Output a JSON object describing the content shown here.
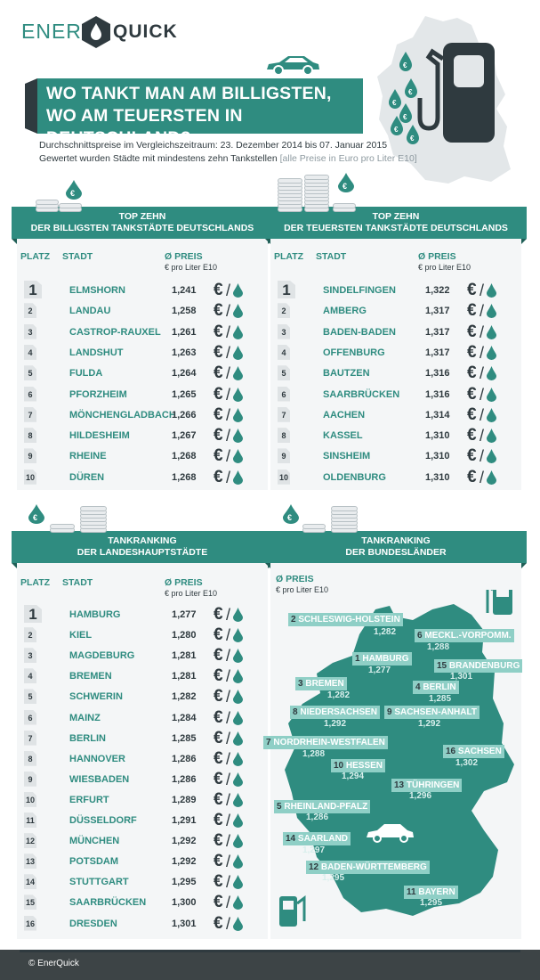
{
  "brand": {
    "part1": "ENER",
    "part2": "QUICK"
  },
  "title": {
    "line1": "WO TANKT MAN AM BILLIGSTEN,",
    "line2": "WO AM TEUERSTEN IN DEUTSCHLAND?"
  },
  "subtitle": {
    "line1": "Durchschnittspreise im Vergleichszeitraum: 23. Dezember 2014 bis 07. Januar 2015",
    "line2": "Gewertet wurden Städte mit mindestens zehn Tankstellen",
    "note": "[alle Preise in Euro pro Liter E10]"
  },
  "columns": {
    "platz": "PLATZ",
    "stadt": "STADT",
    "preis": "Ø PREIS",
    "unit": "€ pro Liter E10"
  },
  "cheapest": {
    "banner1": "TOP ZEHN",
    "banner2": "DER BILLIGSTEN TANKSTÄDTE DEUTSCHLANDS",
    "rows": [
      {
        "rank": "1",
        "city": "ELMSHORN",
        "price": "1,241"
      },
      {
        "rank": "2",
        "city": "LANDAU",
        "price": "1,258"
      },
      {
        "rank": "3",
        "city": "CASTROP-RAUXEL",
        "price": "1,261"
      },
      {
        "rank": "4",
        "city": "LANDSHUT",
        "price": "1,263"
      },
      {
        "rank": "5",
        "city": "FULDA",
        "price": "1,264"
      },
      {
        "rank": "6",
        "city": "PFORZHEIM",
        "price": "1,265"
      },
      {
        "rank": "7",
        "city": "MÖNCHENGLADBACH",
        "price": "1,266"
      },
      {
        "rank": "8",
        "city": "HILDESHEIM",
        "price": "1,267"
      },
      {
        "rank": "9",
        "city": "RHEINE",
        "price": "1,268"
      },
      {
        "rank": "10",
        "city": "DÜREN",
        "price": "1,268"
      }
    ]
  },
  "expensive": {
    "banner1": "TOP ZEHN",
    "banner2": "DER TEUERSTEN TANKSTÄDTE DEUTSCHLANDS",
    "rows": [
      {
        "rank": "1",
        "city": "SINDELFINGEN",
        "price": "1,322"
      },
      {
        "rank": "2",
        "city": "AMBERG",
        "price": "1,317"
      },
      {
        "rank": "3",
        "city": "BADEN-BADEN",
        "price": "1,317"
      },
      {
        "rank": "4",
        "city": "OFFENBURG",
        "price": "1,317"
      },
      {
        "rank": "5",
        "city": "BAUTZEN",
        "price": "1,316"
      },
      {
        "rank": "6",
        "city": "SAARBRÜCKEN",
        "price": "1,316"
      },
      {
        "rank": "7",
        "city": "AACHEN",
        "price": "1,314"
      },
      {
        "rank": "8",
        "city": "KASSEL",
        "price": "1,310"
      },
      {
        "rank": "9",
        "city": "SINSHEIM",
        "price": "1,310"
      },
      {
        "rank": "10",
        "city": "OLDENBURG",
        "price": "1,310"
      }
    ]
  },
  "capitals": {
    "banner1": "TANKRANKING",
    "banner2": "DER LANDESHAUPTSTÄDTE",
    "rows": [
      {
        "rank": "1",
        "city": "HAMBURG",
        "price": "1,277"
      },
      {
        "rank": "2",
        "city": "KIEL",
        "price": "1,280"
      },
      {
        "rank": "3",
        "city": "MAGDEBURG",
        "price": "1,281"
      },
      {
        "rank": "4",
        "city": "BREMEN",
        "price": "1,281"
      },
      {
        "rank": "5",
        "city": "SCHWERIN",
        "price": "1,282"
      },
      {
        "rank": "6",
        "city": "MAINZ",
        "price": "1,284"
      },
      {
        "rank": "7",
        "city": "BERLIN",
        "price": "1,285"
      },
      {
        "rank": "8",
        "city": "HANNOVER",
        "price": "1,286"
      },
      {
        "rank": "9",
        "city": "WIESBADEN",
        "price": "1,286"
      },
      {
        "rank": "10",
        "city": "ERFURT",
        "price": "1,289"
      },
      {
        "rank": "11",
        "city": "DÜSSELDORF",
        "price": "1,291"
      },
      {
        "rank": "12",
        "city": "MÜNCHEN",
        "price": "1,292"
      },
      {
        "rank": "13",
        "city": "POTSDAM",
        "price": "1,292"
      },
      {
        "rank": "14",
        "city": "STUTTGART",
        "price": "1,295"
      },
      {
        "rank": "15",
        "city": "SAARBRÜCKEN",
        "price": "1,300"
      },
      {
        "rank": "16",
        "city": "DRESDEN",
        "price": "1,301"
      }
    ]
  },
  "states": {
    "banner1": "TANKRANKING",
    "banner2": "DER BUNDESLÄNDER",
    "items": [
      {
        "rank": "2",
        "name": "SCHLESWIG-HOLSTEIN",
        "price": "1,282"
      },
      {
        "rank": "6",
        "name": "MECKL.-VORPOMM.",
        "price": "1,288"
      },
      {
        "rank": "1",
        "name": "HAMBURG",
        "price": "1,277"
      },
      {
        "rank": "15",
        "name": "BRANDENBURG",
        "price": "1,301"
      },
      {
        "rank": "3",
        "name": "BREMEN",
        "price": "1,282"
      },
      {
        "rank": "4",
        "name": "BERLIN",
        "price": "1,285"
      },
      {
        "rank": "8",
        "name": "NIEDERSACHSEN",
        "price": "1,292"
      },
      {
        "rank": "9",
        "name": "SACHSEN-ANHALT",
        "price": "1,292"
      },
      {
        "rank": "7",
        "name": "NORDRHEIN-WESTFALEN",
        "price": "1,288"
      },
      {
        "rank": "16",
        "name": "SACHSEN",
        "price": "1,302"
      },
      {
        "rank": "10",
        "name": "HESSEN",
        "price": "1,294"
      },
      {
        "rank": "13",
        "name": "TÜHRINGEN",
        "price": "1,296"
      },
      {
        "rank": "5",
        "name": "RHEINLAND-PFALZ",
        "price": "1,286"
      },
      {
        "rank": "14",
        "name": "SAARLAND",
        "price": "1,297"
      },
      {
        "rank": "12",
        "name": "BADEN-WÜRTTEMBERG",
        "price": "1,295"
      },
      {
        "rank": "11",
        "name": "BAYERN",
        "price": "1,295"
      }
    ]
  },
  "footer": "© EnerQuick",
  "colors": {
    "accent": "#2f8c80",
    "dark": "#2f3a3f",
    "panel": "#f4f6f7",
    "footer": "#3d4446"
  },
  "icons": [
    "euro-icon",
    "drop-icon",
    "fuel-pump-icon",
    "car-icon",
    "coin-stack-icon"
  ]
}
